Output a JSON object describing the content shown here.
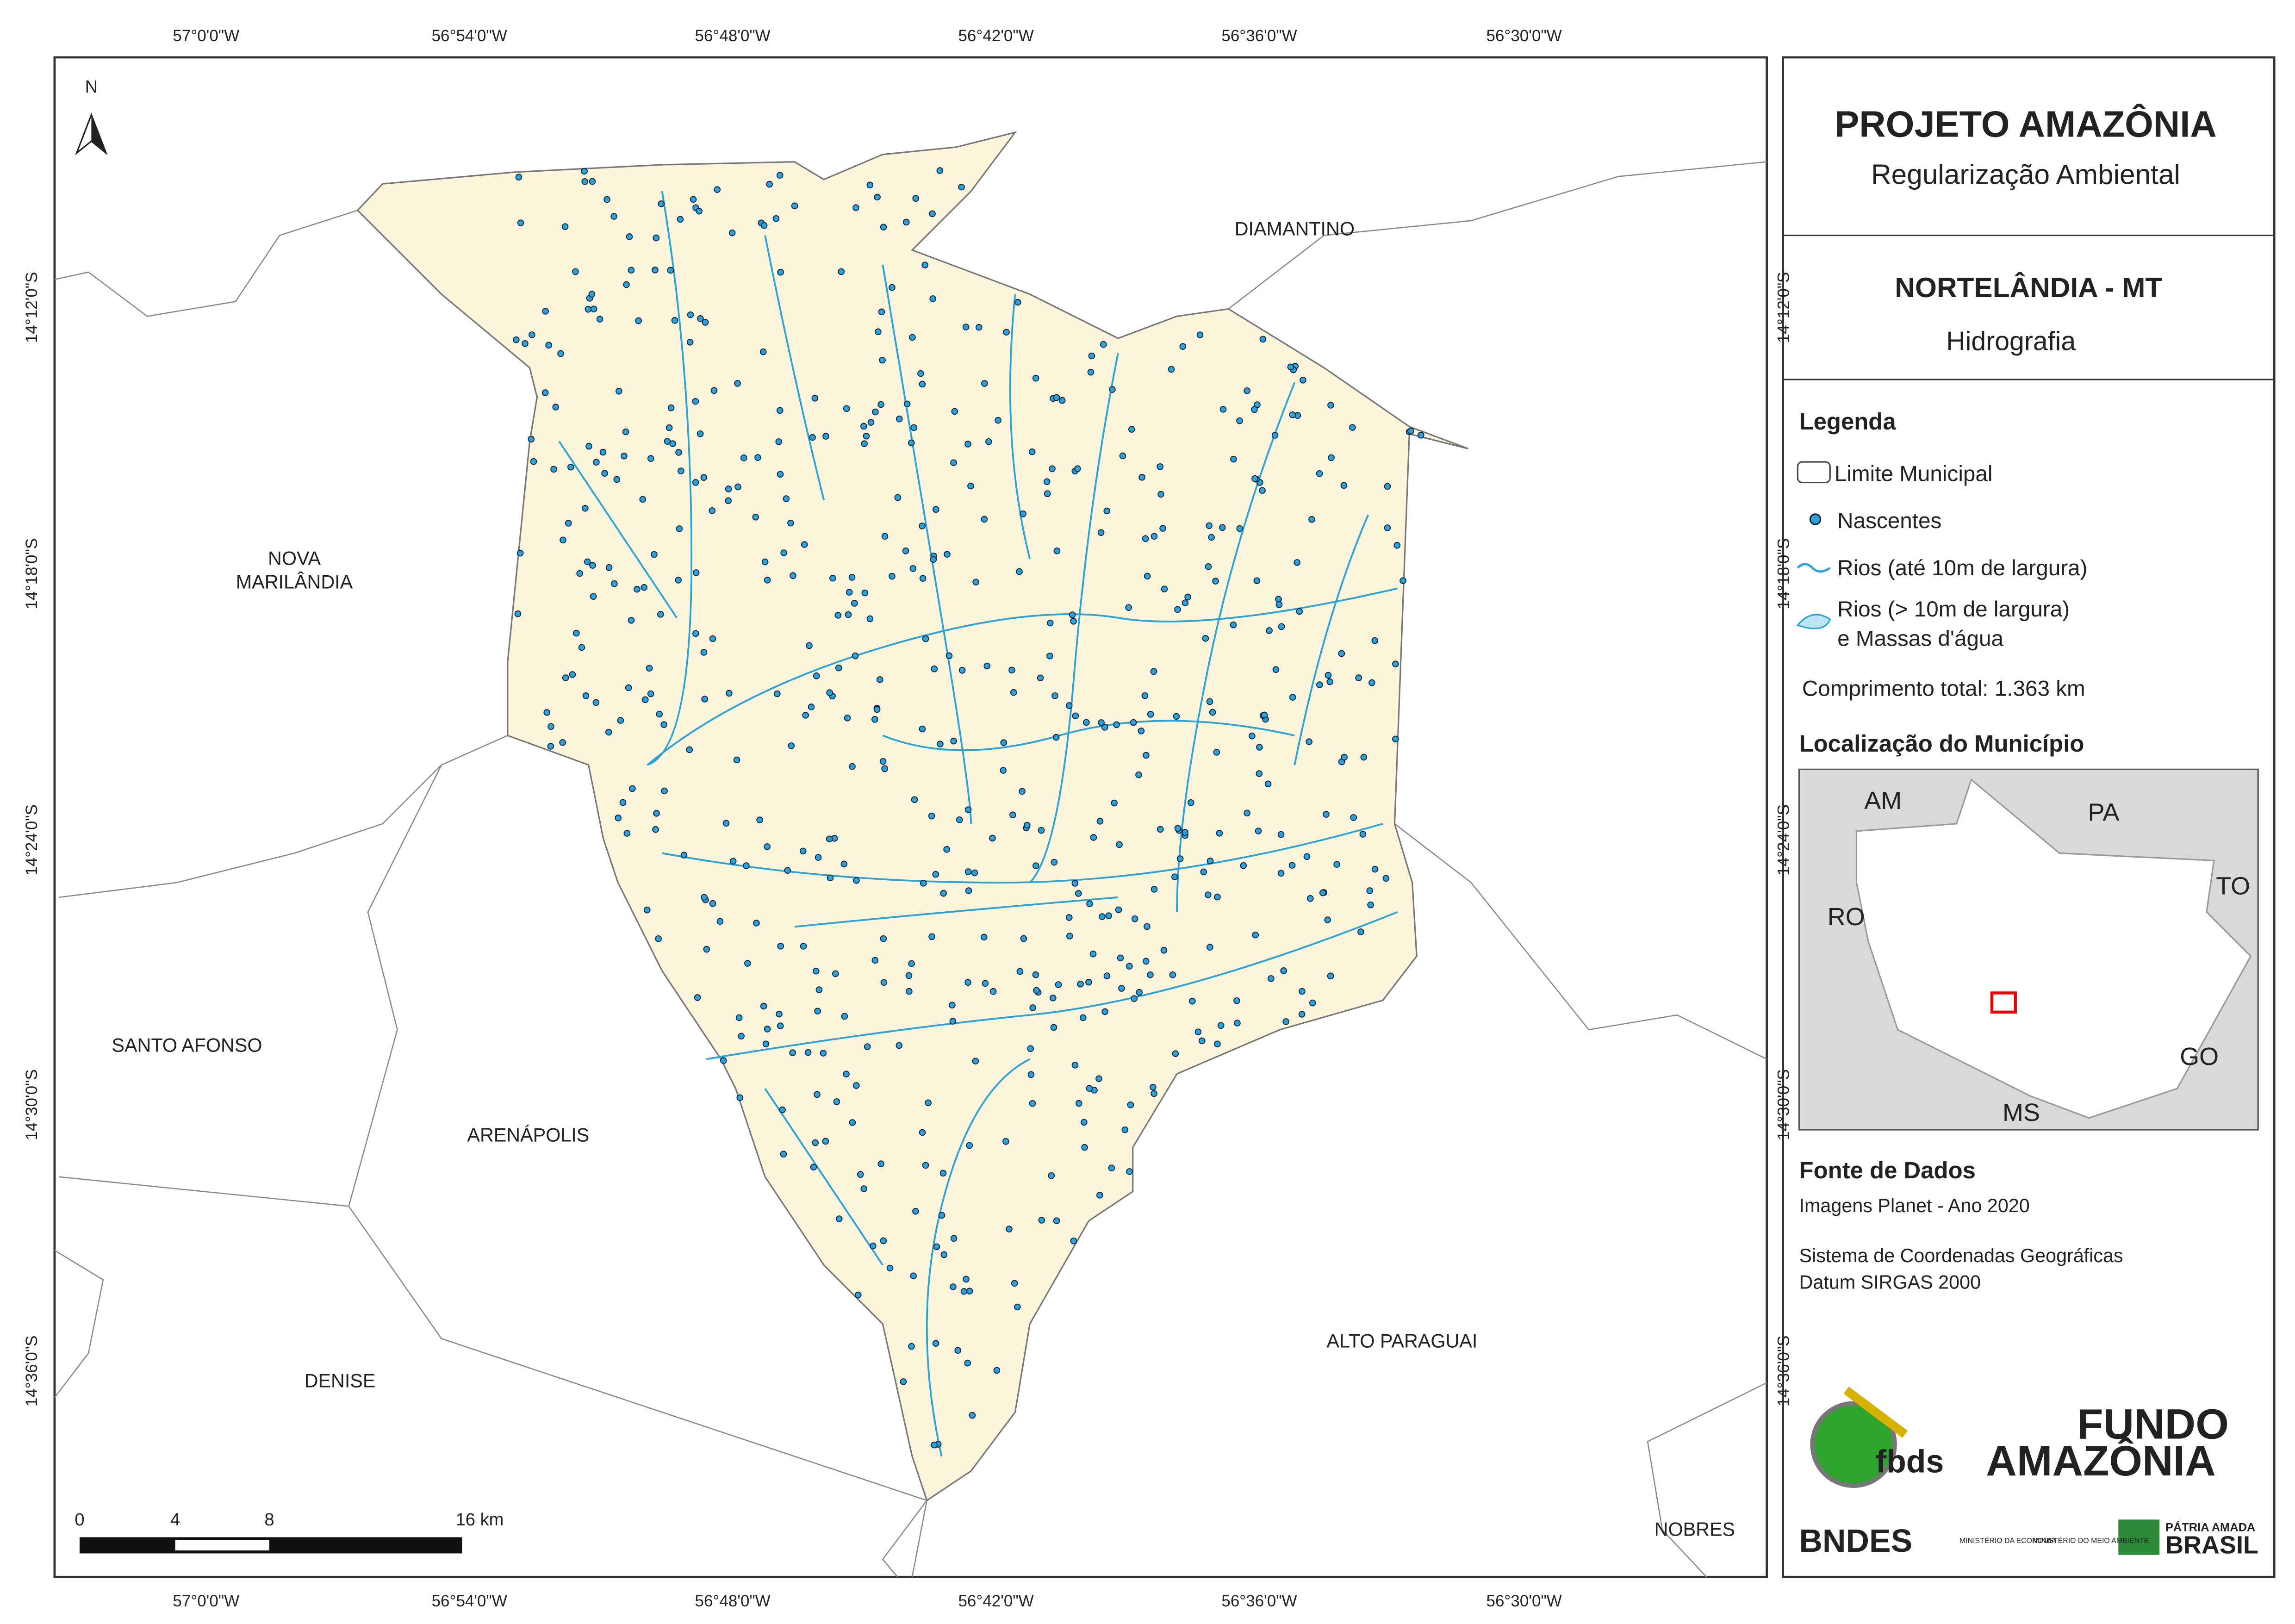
{
  "header": {
    "title": "PROJETO AMAZÔNIA",
    "subtitle": "Regularização Ambiental"
  },
  "municipality": {
    "name": "NORTELÂNDIA - MT",
    "theme": "Hidrografia"
  },
  "legend": {
    "title": "Legenda",
    "items": [
      "Limite Municipal",
      "Nascentes",
      "Rios (até 10m de largura)",
      "Rios (> 10m de largura)",
      "e Massas d'água"
    ],
    "total": "Comprimento total: 1.363 km"
  },
  "location": {
    "title": "Localização do Município",
    "states": [
      "AM",
      "PA",
      "TO",
      "RO",
      "GO",
      "MS"
    ]
  },
  "source": {
    "title": "Fonte de Dados",
    "lines": [
      "Imagens Planet - Ano 2020",
      "Sistema de Coordenadas Geográficas",
      "Datum SIRGAS 2000"
    ]
  },
  "map": {
    "north": "N",
    "x_labels": [
      "57°0'0\"W",
      "56°54'0\"W",
      "56°48'0\"W",
      "56°42'0\"W",
      "56°36'0\"W",
      "56°30'0\"W"
    ],
    "y_labels": [
      "14°12'0\"S",
      "14°18'0\"S",
      "14°24'0\"S",
      "14°30'0\"S",
      "14°36'0\"S"
    ],
    "neighbors": [
      "DIAMANTINO",
      "NOVA",
      "MARILÂNDIA",
      "SANTO AFONSO",
      "ARENÁPOLIS",
      "ALTO PARAGUAI",
      "DENISE",
      "NOBRES"
    ],
    "scale": [
      "0",
      "4",
      "8",
      "16 km"
    ]
  },
  "logos": [
    "fbds",
    "FUNDO",
    "AMAZÔNIA",
    "BNDES",
    "MINISTÉRIO DA ECONOMIA",
    "MINISTÉRIO DO MEIO AMBIENTE",
    "PÁTRIA AMADA",
    "BRASIL"
  ]
}
